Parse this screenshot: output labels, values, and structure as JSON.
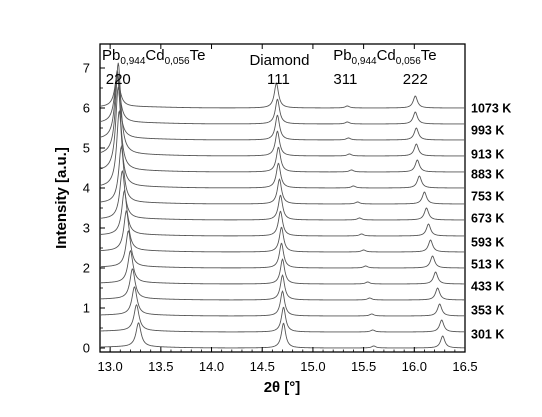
{
  "chart_data": {
    "type": "line",
    "title": "",
    "xlabel": "2θ [°]",
    "ylabel": "Intensity [a.u.]",
    "xlim": [
      12.9,
      16.5
    ],
    "ylim": [
      -0.1,
      7.6
    ],
    "x_ticks": [
      "13.0",
      "13.5",
      "14.0",
      "14.5",
      "15.0",
      "15.5",
      "16.0",
      "16.5"
    ],
    "y_ticks": [
      "0",
      "1",
      "2",
      "3",
      "4",
      "5",
      "6",
      "7"
    ],
    "grid": false,
    "line_color": "#555555",
    "series": [
      {
        "name": "301 K",
        "offset": 0.0,
        "peaks": [
          {
            "x": 13.28,
            "h": 0.6
          },
          {
            "x": 14.71,
            "h": 0.62
          },
          {
            "x": 15.6,
            "h": 0.05
          },
          {
            "x": 16.28,
            "h": 0.3
          }
        ]
      },
      {
        "name": "353 K",
        "offset": 0.4,
        "peaks": [
          {
            "x": 13.26,
            "h": 0.65
          },
          {
            "x": 14.71,
            "h": 0.62
          },
          {
            "x": 15.59,
            "h": 0.05
          },
          {
            "x": 16.27,
            "h": 0.3
          }
        ]
      },
      {
        "name": "433 K",
        "offset": 0.8,
        "peaks": [
          {
            "x": 13.24,
            "h": 0.7
          },
          {
            "x": 14.7,
            "h": 0.62
          },
          {
            "x": 15.58,
            "h": 0.05
          },
          {
            "x": 16.25,
            "h": 0.3
          }
        ]
      },
      {
        "name": "513 K",
        "offset": 1.2,
        "peaks": [
          {
            "x": 13.22,
            "h": 0.75
          },
          {
            "x": 14.7,
            "h": 0.62
          },
          {
            "x": 15.56,
            "h": 0.05
          },
          {
            "x": 16.23,
            "h": 0.3
          }
        ]
      },
      {
        "name": "593 K",
        "offset": 1.6,
        "peaks": [
          {
            "x": 13.2,
            "h": 0.8
          },
          {
            "x": 14.7,
            "h": 0.62
          },
          {
            "x": 15.54,
            "h": 0.05
          },
          {
            "x": 16.21,
            "h": 0.3
          }
        ]
      },
      {
        "name": "673 K",
        "offset": 2.0,
        "peaks": [
          {
            "x": 13.18,
            "h": 0.9
          },
          {
            "x": 14.69,
            "h": 0.62
          },
          {
            "x": 15.52,
            "h": 0.05
          },
          {
            "x": 16.18,
            "h": 0.3
          }
        ]
      },
      {
        "name": "753 K",
        "offset": 2.4,
        "peaks": [
          {
            "x": 13.16,
            "h": 1.0
          },
          {
            "x": 14.69,
            "h": 0.62
          },
          {
            "x": 15.5,
            "h": 0.05
          },
          {
            "x": 16.16,
            "h": 0.3
          }
        ]
      },
      {
        "name": "883 K",
        "offset": 2.8,
        "peaks": [
          {
            "x": 13.14,
            "h": 1.1
          },
          {
            "x": 14.68,
            "h": 0.62
          },
          {
            "x": 15.48,
            "h": 0.05
          },
          {
            "x": 16.14,
            "h": 0.3
          }
        ]
      },
      {
        "name": "913 K",
        "offset": 3.2,
        "peaks": [
          {
            "x": 13.12,
            "h": 1.2
          },
          {
            "x": 14.68,
            "h": 0.62
          },
          {
            "x": 15.46,
            "h": 0.05
          },
          {
            "x": 16.12,
            "h": 0.3
          }
        ]
      },
      {
        "name": "993 K",
        "offset": 3.6,
        "peaks": [
          {
            "x": 13.11,
            "h": 1.4
          },
          {
            "x": 14.67,
            "h": 0.62
          },
          {
            "x": 15.44,
            "h": 0.05
          },
          {
            "x": 16.1,
            "h": 0.3
          }
        ]
      },
      {
        "name": "1073 K",
        "offset": 4.0,
        "peaks": [
          {
            "x": 13.09,
            "h": 1.9
          },
          {
            "x": 14.66,
            "h": 0.62
          },
          {
            "x": 15.4,
            "h": 0.05
          },
          {
            "x": 16.05,
            "h": 0.3
          }
        ]
      },
      {
        "name": "",
        "offset": 4.4,
        "peaks": [
          {
            "x": 13.08,
            "h": 2.1
          },
          {
            "x": 14.66,
            "h": 0.62
          },
          {
            "x": 15.38,
            "h": 0.05
          },
          {
            "x": 16.03,
            "h": 0.3
          }
        ]
      },
      {
        "name": "",
        "offset": 4.8,
        "peaks": [
          {
            "x": 13.08,
            "h": 2.3
          },
          {
            "x": 14.65,
            "h": 0.62
          },
          {
            "x": 15.36,
            "h": 0.05
          },
          {
            "x": 16.02,
            "h": 0.3
          }
        ]
      },
      {
        "name": "",
        "offset": 5.2,
        "peaks": [
          {
            "x": 13.07,
            "h": 1.6
          },
          {
            "x": 14.65,
            "h": 0.62
          },
          {
            "x": 15.35,
            "h": 0.05
          },
          {
            "x": 16.02,
            "h": 0.3
          }
        ]
      },
      {
        "name": "",
        "offset": 5.6,
        "peaks": [
          {
            "x": 13.07,
            "h": 1.3
          },
          {
            "x": 14.65,
            "h": 0.62
          },
          {
            "x": 15.34,
            "h": 0.05
          },
          {
            "x": 16.01,
            "h": 0.3
          }
        ]
      },
      {
        "name": "",
        "offset": 6.0,
        "peaks": [
          {
            "x": 13.07,
            "h": 0.8
          },
          {
            "x": 14.64,
            "h": 0.62
          },
          {
            "x": 15.34,
            "h": 0.05
          },
          {
            "x": 16.01,
            "h": 0.3
          }
        ]
      }
    ],
    "temperature_labels": [
      {
        "text": "1073 K",
        "y": 6.0
      },
      {
        "text": "993 K",
        "y": 5.45
      },
      {
        "text": "913 K",
        "y": 4.85
      },
      {
        "text": "883 K",
        "y": 4.35
      },
      {
        "text": "753 K",
        "y": 3.8
      },
      {
        "text": "673 K",
        "y": 3.25
      },
      {
        "text": "593 K",
        "y": 2.65
      },
      {
        "text": "513 K",
        "y": 2.1
      },
      {
        "text": "433 K",
        "y": 1.55
      },
      {
        "text": "353 K",
        "y": 0.95
      },
      {
        "text": "301 K",
        "y": 0.35
      }
    ],
    "annotations": {
      "left_phase": {
        "base": "Pb",
        "s1": "0,944",
        "mid": "Cd",
        "s2": "0,056",
        "tail": "Te",
        "x": 12.92,
        "y": 7.2
      },
      "right_phase": {
        "base": "Pb",
        "s1": "0,944",
        "mid": "Cd",
        "s2": "0,056",
        "tail": "Te",
        "x": 15.2,
        "y": 7.2
      },
      "diamond": {
        "text": "Diamond",
        "x": 14.67,
        "y": 7.08
      },
      "hkl": [
        {
          "text": "220",
          "x": 13.08,
          "y": 6.6
        },
        {
          "text": "111",
          "x": 14.66,
          "y": 6.6
        },
        {
          "text": "311",
          "x": 15.32,
          "y": 6.6
        },
        {
          "text": "222",
          "x": 16.01,
          "y": 6.6
        }
      ]
    }
  }
}
